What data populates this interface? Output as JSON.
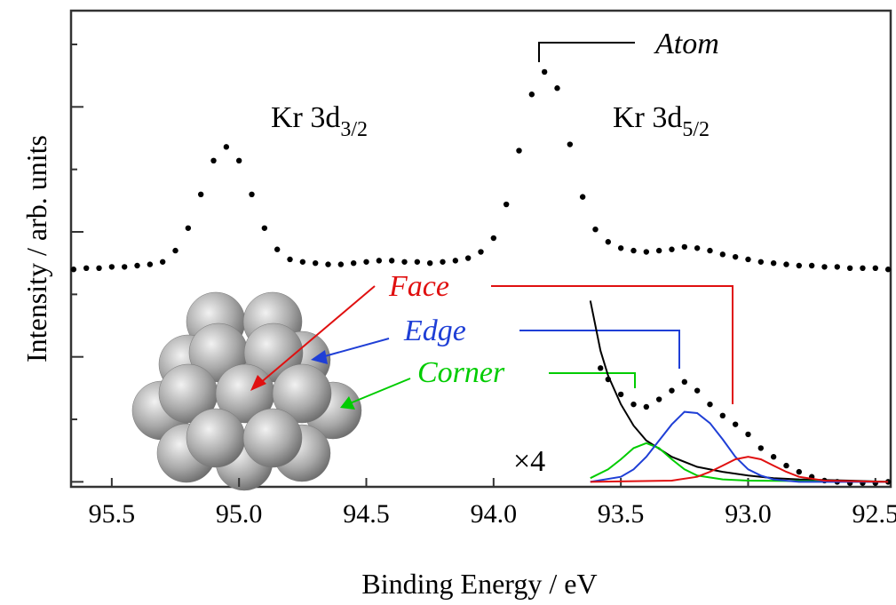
{
  "chart_data": {
    "type": "line",
    "x_label": "Binding Energy / eV",
    "y_label": "Intensity / arb. units",
    "xlim": [
      95.66,
      92.44
    ],
    "ylim": [
      -0.04,
      3.77
    ],
    "xticks": [
      95.5,
      {
        "value": 95,
        "label": "95.0"
      },
      94.5,
      {
        "value": 94,
        "label": "94.0"
      },
      93.5,
      {
        "value": 93,
        "label": "93.0"
      },
      92.5
    ],
    "yticks": [
      0,
      0.5,
      1,
      1.5,
      2,
      2.5,
      3,
      3.5
    ],
    "series": [
      {
        "style": "dots",
        "color": "#000000",
        "x": [
          95.65,
          95.6,
          95.55,
          95.5,
          95.45,
          95.4,
          95.35,
          95.3,
          95.25,
          95.2,
          95.15,
          95.1,
          95.05,
          95.0,
          94.95,
          94.9,
          94.85,
          94.8,
          94.75,
          94.7,
          94.65,
          94.6,
          94.55,
          94.5,
          94.45,
          94.4,
          94.35,
          94.3,
          94.25,
          94.2,
          94.15,
          94.1,
          94.05,
          94.0,
          93.95,
          93.9,
          93.85,
          93.8,
          93.75,
          93.7,
          93.65,
          93.6,
          93.55,
          93.5,
          93.45,
          93.4,
          93.35,
          93.3,
          93.25,
          93.2,
          93.15,
          93.1,
          93.05,
          93.0,
          92.95,
          92.9,
          92.85,
          92.8,
          92.75,
          92.7,
          92.65,
          92.6,
          92.55,
          92.5,
          92.45
        ],
        "values": [
          1.7,
          1.71,
          1.71,
          1.72,
          1.72,
          1.73,
          1.74,
          1.76,
          1.85,
          2.03,
          2.3,
          2.57,
          2.68,
          2.57,
          2.3,
          2.03,
          1.86,
          1.78,
          1.76,
          1.75,
          1.74,
          1.74,
          1.75,
          1.76,
          1.77,
          1.77,
          1.76,
          1.76,
          1.75,
          1.76,
          1.77,
          1.79,
          1.84,
          1.95,
          2.22,
          2.65,
          3.1,
          3.28,
          3.15,
          2.7,
          2.28,
          2.02,
          1.92,
          1.87,
          1.85,
          1.84,
          1.85,
          1.86,
          1.88,
          1.87,
          1.85,
          1.82,
          1.8,
          1.78,
          1.76,
          1.75,
          1.74,
          1.73,
          1.73,
          1.72,
          1.72,
          1.71,
          1.71,
          1.71,
          1.7
        ]
      },
      {
        "style": "dots",
        "color": "#000000",
        "x": [
          93.58,
          93.55,
          93.5,
          93.45,
          93.4,
          93.35,
          93.3,
          93.25,
          93.2,
          93.15,
          93.1,
          93.05,
          93.0,
          92.95,
          92.9,
          92.85,
          92.8,
          92.75,
          92.7,
          92.65,
          92.6,
          92.55,
          92.5,
          92.45
        ],
        "values": [
          0.91,
          0.82,
          0.7,
          0.62,
          0.6,
          0.66,
          0.73,
          0.8,
          0.73,
          0.62,
          0.53,
          0.46,
          0.38,
          0.27,
          0.2,
          0.13,
          0.08,
          0.04,
          0.01,
          0.0,
          -0.01,
          -0.01,
          -0.01,
          0.0
        ]
      },
      {
        "style": "line",
        "color": "#000000",
        "x": [
          93.62,
          93.58,
          93.55,
          93.5,
          93.45,
          93.4,
          93.3,
          93.2,
          93.1,
          93.0,
          92.9,
          92.8,
          92.6,
          92.45
        ],
        "values": [
          1.45,
          1.05,
          0.85,
          0.62,
          0.45,
          0.33,
          0.2,
          0.12,
          0.08,
          0.05,
          0.03,
          0.02,
          0.01,
          0.0
        ]
      },
      {
        "style": "line",
        "color": "#00cc00",
        "x": [
          93.62,
          93.55,
          93.5,
          93.45,
          93.4,
          93.35,
          93.3,
          93.25,
          93.2,
          93.1,
          93.0,
          92.45
        ],
        "values": [
          0.03,
          0.1,
          0.18,
          0.27,
          0.31,
          0.27,
          0.18,
          0.1,
          0.05,
          0.02,
          0.01,
          0.0
        ]
      },
      {
        "style": "line",
        "color": "#1f3fd6",
        "x": [
          93.62,
          93.5,
          93.45,
          93.4,
          93.35,
          93.3,
          93.25,
          93.2,
          93.15,
          93.1,
          93.05,
          93.0,
          92.95,
          92.9,
          92.8,
          92.45
        ],
        "values": [
          0.0,
          0.04,
          0.1,
          0.2,
          0.33,
          0.46,
          0.56,
          0.55,
          0.47,
          0.34,
          0.2,
          0.1,
          0.05,
          0.02,
          0.0,
          0.0
        ]
      },
      {
        "style": "line",
        "color": "#e01010",
        "x": [
          93.62,
          93.3,
          93.2,
          93.15,
          93.1,
          93.05,
          93.0,
          92.95,
          92.9,
          92.85,
          92.8,
          92.7,
          92.45
        ],
        "values": [
          0.0,
          0.01,
          0.04,
          0.08,
          0.13,
          0.18,
          0.2,
          0.18,
          0.13,
          0.08,
          0.04,
          0.01,
          0.0
        ]
      }
    ],
    "annotations": [
      {
        "text": "Atom",
        "color": "#000000"
      },
      {
        "text": "Kr 3d",
        "sub": "3/2",
        "color": "#000000"
      },
      {
        "text": "Kr 3d",
        "sub": "5/2",
        "color": "#000000"
      },
      {
        "text": "Face",
        "color": "#e01010"
      },
      {
        "text": "Edge",
        "color": "#1f3fd6"
      },
      {
        "text": "Corner",
        "color": "#00cc00"
      },
      {
        "text": "×4",
        "color": "#000000"
      }
    ]
  }
}
